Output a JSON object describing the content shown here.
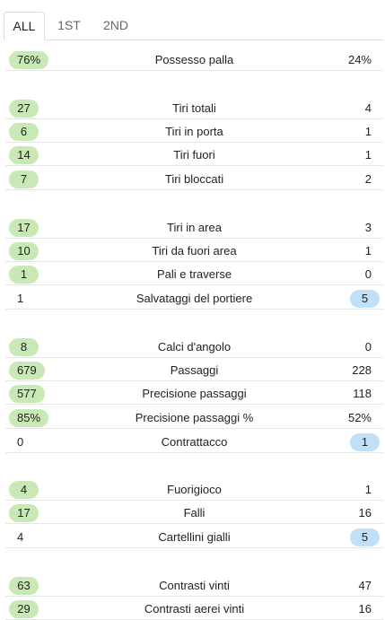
{
  "tabs": [
    "ALL",
    "1ST",
    "2ND"
  ],
  "stats": [
    {
      "label": "Possesso palla",
      "home": "76%",
      "away": "24%",
      "winner": "home"
    },
    {
      "label": "Tiri totali",
      "home": "27",
      "away": "4",
      "winner": "home"
    },
    {
      "label": "Tiri in porta",
      "home": "6",
      "away": "1",
      "winner": "home"
    },
    {
      "label": "Tiri fuori",
      "home": "14",
      "away": "1",
      "winner": "home"
    },
    {
      "label": "Tiri bloccati",
      "home": "7",
      "away": "2",
      "winner": "home"
    },
    {
      "label": "Tiri in area",
      "home": "17",
      "away": "3",
      "winner": "home"
    },
    {
      "label": "Tiri da fuori area",
      "home": "10",
      "away": "1",
      "winner": "home"
    },
    {
      "label": "Pali e traverse",
      "home": "1",
      "away": "0",
      "winner": "home"
    },
    {
      "label": "Salvataggi del portiere",
      "home": "1",
      "away": "5",
      "winner": "away"
    },
    {
      "label": "Calci d'angolo",
      "home": "8",
      "away": "0",
      "winner": "home"
    },
    {
      "label": "Passaggi",
      "home": "679",
      "away": "228",
      "winner": "home"
    },
    {
      "label": "Precisione passaggi",
      "home": "577",
      "away": "118",
      "winner": "home"
    },
    {
      "label": "Precisione passaggi %",
      "home": "85%",
      "away": "52%",
      "winner": "home"
    },
    {
      "label": "Contrattacco",
      "home": "0",
      "away": "1",
      "winner": "away"
    },
    {
      "label": "Fuorigioco",
      "home": "4",
      "away": "1",
      "winner": "home"
    },
    {
      "label": "Falli",
      "home": "17",
      "away": "16",
      "winner": "home"
    },
    {
      "label": "Cartellini gialli",
      "home": "4",
      "away": "5",
      "winner": "away"
    },
    {
      "label": "Contrasti vinti",
      "home": "63",
      "away": "47",
      "winner": "home"
    },
    {
      "label": "Contrasti aerei vinti",
      "home": "29",
      "away": "16",
      "winner": "home"
    }
  ],
  "colors": {
    "home_highlight": "#c8e8b5",
    "away_highlight": "#bfe0f8"
  }
}
